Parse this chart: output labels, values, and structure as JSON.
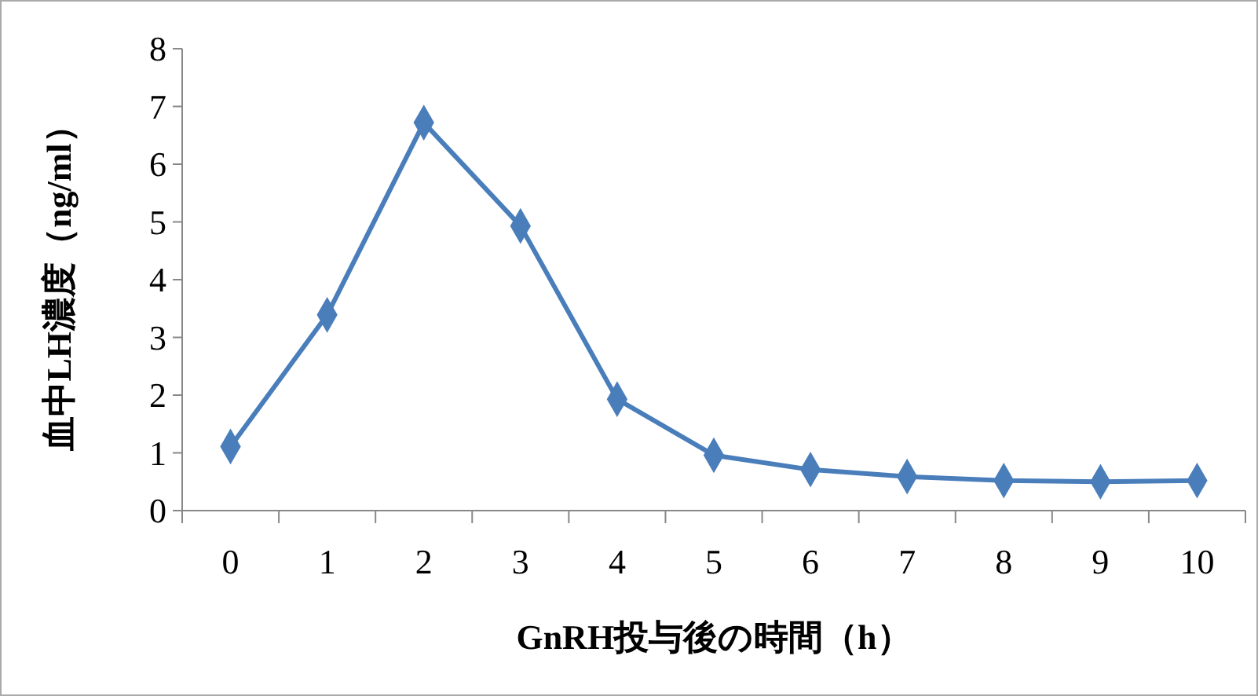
{
  "chart_data": {
    "type": "line",
    "xlabel": "GnRH投与後の時間（h）",
    "ylabel": "血中LH濃度（ng/ml）",
    "categories": [
      "0",
      "1",
      "2",
      "3",
      "4",
      "5",
      "6",
      "7",
      "8",
      "9",
      "10"
    ],
    "series": [
      {
        "color": "#4a7ebb",
        "values": [
          1.11,
          3.39,
          6.72,
          4.93,
          1.93,
          0.96,
          0.71,
          0.59,
          0.52,
          0.5,
          0.52
        ]
      }
    ],
    "ylim": [
      0,
      8
    ],
    "yticks": [
      0,
      1,
      2,
      3,
      4,
      5,
      6,
      7,
      8
    ],
    "marker": "diamond",
    "line_style": "solid",
    "grid": false
  }
}
